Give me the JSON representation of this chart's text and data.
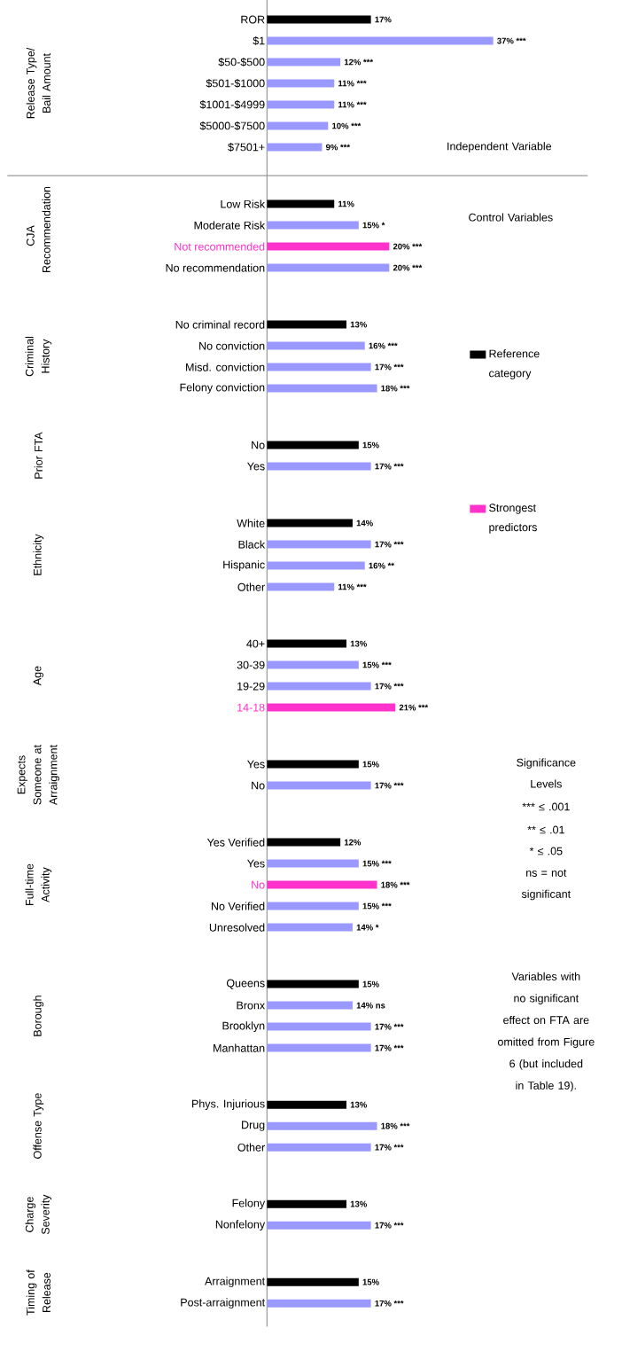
{
  "chart_data": {
    "type": "bar",
    "orientation": "horizontal",
    "legend": "right",
    "categories": [
      "ROR",
      "$1",
      "$50-$500",
      "$501-$1000",
      "$1001-$4999",
      "$5000-$7500",
      "$7501+",
      "Low Risk",
      "Moderate Risk",
      "Not recommended",
      "No recommendation",
      "No criminal record",
      "No conviction",
      "Misd. conviction",
      "Felony conviction",
      "No",
      "Yes",
      "White",
      "Black",
      "Hispanic",
      "Other",
      "40+",
      "30-39",
      "19-29",
      "14-18",
      "Yes",
      "No",
      "Yes Verified",
      "Yes",
      "No",
      "No Verified",
      "Unresolved",
      "Queens",
      "Bronx",
      "Brooklyn",
      "Manhattan",
      "Phys. Injurious",
      "Drug",
      "Other",
      "Felony",
      "Nonfelony",
      "Arraignment",
      "Post-arraignment"
    ],
    "series": [
      {
        "name": "Reference category",
        "color": "#000000",
        "values": [
          17,
          null,
          null,
          null,
          null,
          null,
          null,
          11,
          null,
          null,
          null,
          13,
          null,
          null,
          null,
          15,
          null,
          14,
          null,
          null,
          null,
          13,
          null,
          null,
          null,
          15,
          null,
          12,
          null,
          null,
          null,
          null,
          15,
          null,
          null,
          null,
          13,
          null,
          null,
          13,
          null,
          15,
          null
        ],
        "value_labels": [
          "17%",
          null,
          null,
          null,
          null,
          null,
          null,
          "11%",
          null,
          null,
          null,
          "13%",
          null,
          null,
          null,
          "15%",
          null,
          "14%",
          null,
          null,
          null,
          "13%",
          null,
          null,
          null,
          "15%",
          null,
          "12%",
          null,
          null,
          null,
          null,
          "15%",
          null,
          null,
          null,
          "13%",
          null,
          null,
          "13%",
          null,
          "15%",
          null
        ]
      },
      {
        "color": "#9999ff",
        "values": [
          null,
          37,
          12,
          11,
          11,
          10,
          9,
          null,
          15,
          null,
          20,
          null,
          16,
          17,
          18,
          null,
          17,
          null,
          17,
          16,
          11,
          null,
          15,
          17,
          null,
          null,
          17,
          null,
          15,
          null,
          15,
          14,
          null,
          14,
          17,
          17,
          null,
          18,
          17,
          null,
          17,
          null,
          17
        ],
        "value_labels": [
          null,
          "37% ***",
          "12% ***",
          "11% ***",
          "11% ***",
          "10% ***",
          "9% ***",
          null,
          "15% *",
          null,
          "20% ***",
          null,
          "16% ***",
          "17% ***",
          "18% ***",
          null,
          "17% ***",
          null,
          "17% ***",
          "16% **",
          "11% ***",
          null,
          "15% ***",
          "17% ***",
          null,
          null,
          "17% ***",
          null,
          "15% ***",
          null,
          "15% ***",
          "14% *",
          null,
          "14% ns",
          "17% ***",
          "17% ***",
          null,
          "18% ***",
          "17% ***",
          null,
          "17% ***",
          null,
          "17% ***"
        ]
      },
      {
        "name": "Strongest predictors",
        "color": "#ff33cc",
        "values": [
          null,
          null,
          null,
          null,
          null,
          null,
          null,
          null,
          null,
          20,
          null,
          null,
          null,
          null,
          null,
          null,
          null,
          null,
          null,
          null,
          null,
          null,
          null,
          null,
          21,
          null,
          null,
          null,
          null,
          18,
          null,
          null,
          null,
          null,
          null,
          null,
          null,
          null,
          null,
          null,
          null,
          null,
          null
        ],
        "value_labels": [
          null,
          null,
          null,
          null,
          null,
          null,
          null,
          null,
          null,
          "20% ***",
          null,
          null,
          null,
          null,
          null,
          null,
          null,
          null,
          null,
          null,
          null,
          null,
          null,
          null,
          "21% ***",
          null,
          null,
          null,
          null,
          "18% ***",
          null,
          null,
          null,
          null,
          null,
          null,
          null,
          null,
          null,
          null,
          null,
          null,
          null
        ]
      }
    ],
    "annotations": [
      "Release Type/ Bail Amount",
      "CJA Recommendation",
      "Criminal History",
      "Prior FTA",
      "Ethnicity",
      "Age",
      "Expects Someone at Arraignment",
      "Full-time Activity",
      "Borough",
      "Offense Type",
      "Charge Severity",
      "Timing of Release",
      "Independent Variable",
      "Control Variables",
      "Significance Levels",
      "*** ≤ .001",
      "** ≤ .01",
      "* ≤ .05",
      "ns = not significant",
      "Variables with no significant effect on FTA are omitted from Figure 6 (but included in Table 19)."
    ]
  }
}
